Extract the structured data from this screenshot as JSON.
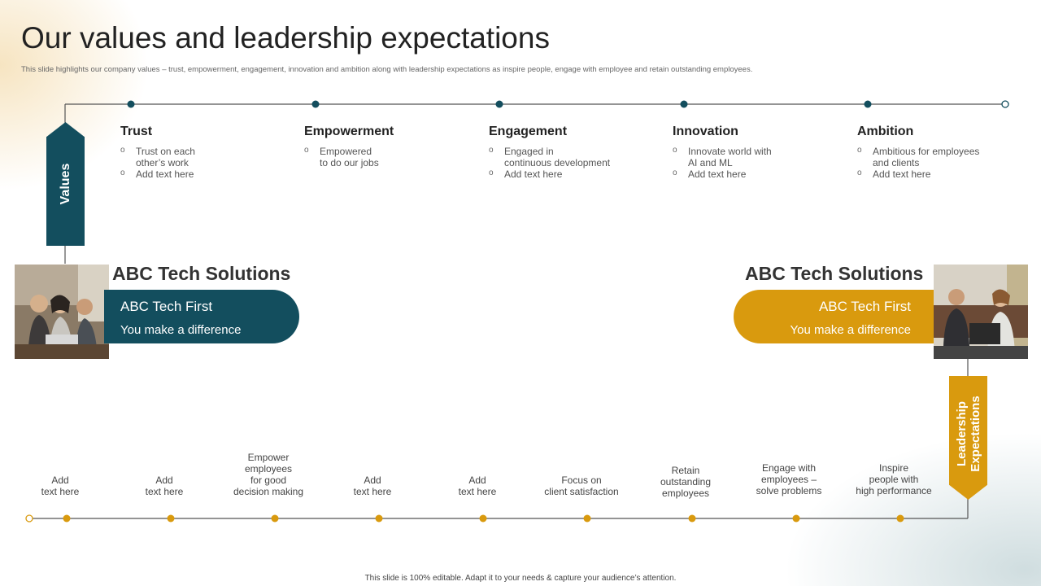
{
  "title": "Our values and leadership expectations",
  "subtitle": "This slide highlights our company values – trust, empowerment, engagement, innovation and ambition along with leadership expectations as inspire people, engage with employee and retain outstanding employees.",
  "values_label": "Values",
  "values": [
    {
      "title": "Trust",
      "items": [
        "Trust on each\nother’s work",
        "Add text here"
      ]
    },
    {
      "title": "Empowerment",
      "items": [
        "Empowered\nto do our jobs"
      ]
    },
    {
      "title": "Engagement",
      "items": [
        "Engaged in\ncontinuous development",
        "Add text here"
      ]
    },
    {
      "title": "Innovation",
      "items": [
        "Innovate world with\nAI and ML",
        "Add text here"
      ]
    },
    {
      "title": "Ambition",
      "items": [
        "Ambitious for employees\nand clients",
        "Add text here"
      ]
    }
  ],
  "left_block": {
    "company": "ABC Tech Solutions",
    "line1": "ABC Tech First",
    "line2": "You make a difference"
  },
  "right_block": {
    "company": "ABC Tech Solutions",
    "line1": "ABC Tech First",
    "line2": "You make a difference"
  },
  "leadership_label": "Leadership\nExpectations",
  "expectations": [
    "Add\ntext here",
    "Add\ntext here",
    "Empower\nemployees\nfor good\ndecision making",
    "Add\ntext here",
    "Add\ntext here",
    "Focus on\nclient satisfaction",
    "Retain\noutstanding\nemployees",
    "Engage with\nemployees –\nsolve problems",
    "Inspire\npeople with\nhigh performance"
  ],
  "footer": "This slide is 100% editable.  Adapt it to your needs & capture your audience’s attention.",
  "colors": {
    "teal": "#134e5e",
    "gold": "#d99a0e",
    "line": "#555555"
  }
}
